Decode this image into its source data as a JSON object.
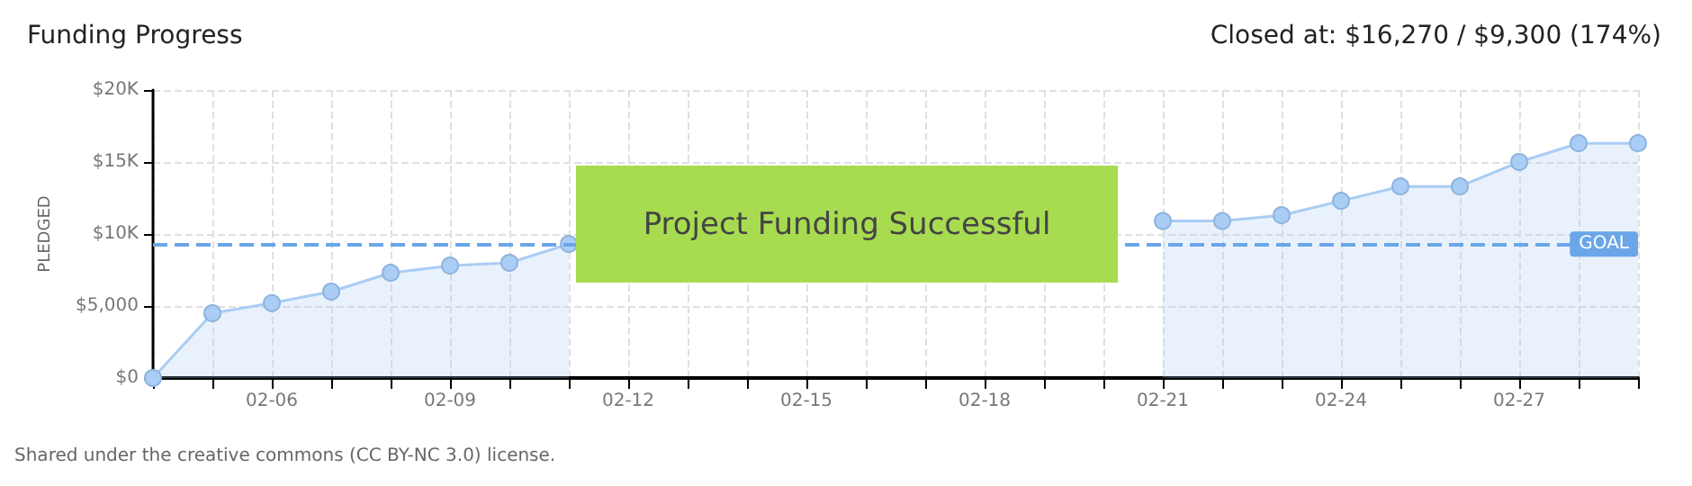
{
  "chart_data": {
    "type": "area",
    "title": "Funding Progress",
    "subtitle": "Closed at: $16,270 / $9,300 (174%)",
    "ylabel": "PLEDGED",
    "x": [
      "--02-04",
      "--02-05",
      "--02-06",
      "--02-07",
      "--02-08",
      "--02-09",
      "--02-10",
      "--02-11",
      "--02-12",
      "--02-13",
      "--02-14",
      "--02-15",
      "--02-16",
      "--02-17",
      "--02-18",
      "--02-19",
      "--02-20",
      "--02-21",
      "--02-22",
      "--02-23",
      "--02-24",
      "--02-25",
      "--02-26",
      "--02-27",
      "--02-28",
      "--02-29"
    ],
    "series": [
      {
        "color": "#a9cdf5",
        "values": [
          0,
          4500,
          5200,
          6000,
          7300,
          7800,
          8000,
          9300,
          null,
          null,
          null,
          null,
          null,
          null,
          null,
          null,
          null,
          10900,
          10900,
          11300,
          12300,
          13300,
          13300,
          15000,
          16300,
          16300
        ]
      }
    ],
    "xlim": [
      "--02-04",
      "--02-29"
    ],
    "xticks": [
      {
        "value": "--02-04",
        "label": null
      },
      {
        "value": "--02-05",
        "label": null
      },
      {
        "value": "--02-06",
        "label": "02-06"
      },
      {
        "value": "--02-07",
        "label": null
      },
      {
        "value": "--02-08",
        "label": null
      },
      {
        "value": "--02-09",
        "label": "02-09"
      },
      {
        "value": "--02-10",
        "label": null
      },
      {
        "value": "--02-11",
        "label": null
      },
      {
        "value": "--02-12",
        "label": "02-12"
      },
      {
        "value": "--02-13",
        "label": null
      },
      {
        "value": "--02-14",
        "label": null
      },
      {
        "value": "--02-15",
        "label": "02-15"
      },
      {
        "value": "--02-16",
        "label": null
      },
      {
        "value": "--02-17",
        "label": null
      },
      {
        "value": "--02-18",
        "label": "02-18"
      },
      {
        "value": "--02-19",
        "label": null
      },
      {
        "value": "--02-20",
        "label": null
      },
      {
        "value": "--02-21",
        "label": "02-21"
      },
      {
        "value": "--02-22",
        "label": null
      },
      {
        "value": "--02-23",
        "label": null
      },
      {
        "value": "--02-24",
        "label": "02-24"
      },
      {
        "value": "--02-25",
        "label": null
      },
      {
        "value": "--02-26",
        "label": null
      },
      {
        "value": "--02-27",
        "label": "02-27"
      },
      {
        "value": "--02-28",
        "label": null
      },
      {
        "value": "--02-29",
        "label": null
      }
    ],
    "ylim": [
      0,
      20000
    ],
    "yticks": [
      {
        "value": 0,
        "label": "$0"
      },
      {
        "value": 5000,
        "label": "$5,000"
      },
      {
        "value": 10000,
        "label": "$10K"
      },
      {
        "value": 15000,
        "label": "$15K"
      },
      {
        "value": 20000,
        "label": "$20K"
      }
    ],
    "ref_lines": [
      {
        "axis": "y",
        "value": 9300,
        "label": "GOAL",
        "color": "#6aa6e8",
        "line_style": "dashed"
      }
    ],
    "annotations": [
      "Project Funding Successful",
      "Shared under the creative commons (CC BY-NC 3.0) license."
    ],
    "grid": true,
    "marker": "circle"
  }
}
